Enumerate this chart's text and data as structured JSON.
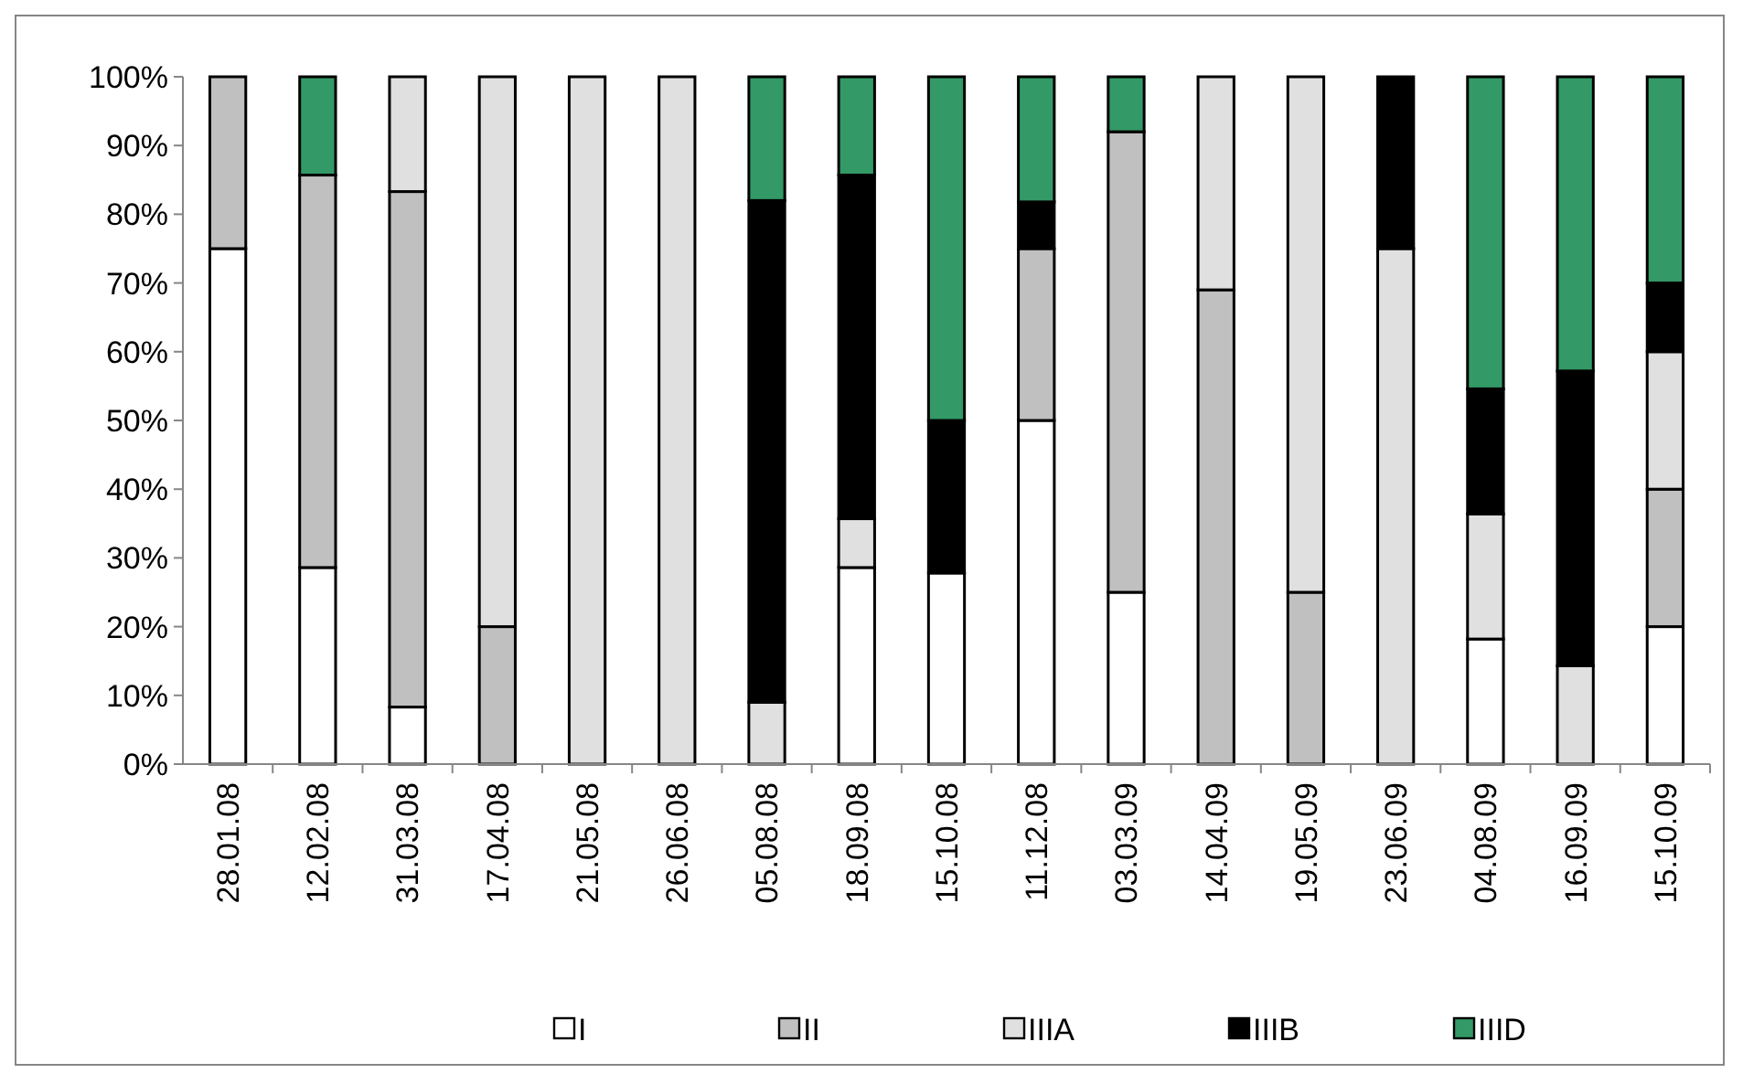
{
  "chart_data": {
    "type": "bar",
    "stacked": true,
    "categories": [
      "28.01.08",
      "12.02.08",
      "31.03.08",
      "17.04.08",
      "21.05.08",
      "26.06.08",
      "05.08.08",
      "18.09.08",
      "15.10.08",
      "11.12.08",
      "03.03.09",
      "14.04.09",
      "19.05.09",
      "23.06.09",
      "04.08.09",
      "16.09.09",
      "15.10.09"
    ],
    "series": [
      {
        "name": "I",
        "color": "#ffffff",
        "values": [
          75,
          28.6,
          8.3,
          0,
          0,
          0,
          0,
          28.6,
          27.8,
          50,
          25,
          0,
          0,
          0,
          18.2,
          0,
          20
        ]
      },
      {
        "name": "II",
        "color": "#c0c0c0",
        "values": [
          25,
          57.1,
          75,
          20,
          0,
          0,
          0,
          0,
          0,
          25,
          67,
          69,
          25,
          0,
          0,
          0,
          20
        ]
      },
      {
        "name": "IIIA",
        "color": "#e0e0e0",
        "values": [
          0,
          0,
          16.7,
          80,
          100,
          100,
          9,
          7.1,
          0,
          0,
          0,
          31,
          75,
          75,
          18.2,
          14.3,
          20
        ]
      },
      {
        "name": "IIIB",
        "color": "#000000",
        "values": [
          0,
          0,
          0,
          0,
          0,
          0,
          73,
          50,
          22.2,
          6.8,
          0,
          0,
          0,
          25,
          18.2,
          42.9,
          10
        ]
      },
      {
        "name": "IIID",
        "color": "#339966",
        "values": [
          0,
          14.3,
          0,
          0,
          0,
          0,
          18,
          14.3,
          50,
          18.2,
          8,
          0,
          0,
          0,
          45.4,
          42.8,
          30
        ]
      }
    ],
    "ylim": [
      0,
      100
    ],
    "yticks": [
      {
        "value": 0,
        "label": "0%"
      },
      {
        "value": 10,
        "label": "10%"
      },
      {
        "value": 20,
        "label": "20%"
      },
      {
        "value": 30,
        "label": "30%"
      },
      {
        "value": 40,
        "label": "40%"
      },
      {
        "value": 50,
        "label": "50%"
      },
      {
        "value": 60,
        "label": "60%"
      },
      {
        "value": 70,
        "label": "70%"
      },
      {
        "value": 80,
        "label": "80%"
      },
      {
        "value": 90,
        "label": "90%"
      },
      {
        "value": 100,
        "label": "100%"
      }
    ],
    "grid": false,
    "legend": "bottom"
  }
}
